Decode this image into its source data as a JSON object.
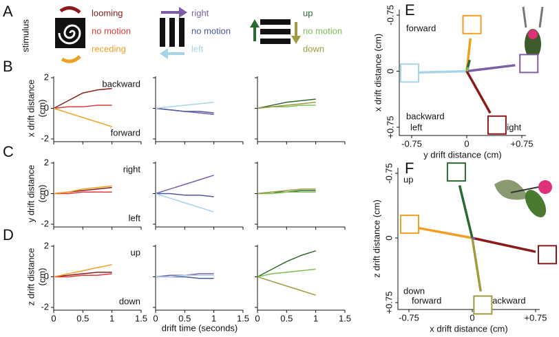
{
  "panel_labels": [
    "A",
    "B",
    "C",
    "D",
    "E",
    "F"
  ],
  "stimulus": {
    "label": "stimulus",
    "groups": [
      {
        "items": [
          "looming",
          "no motion",
          "receding"
        ],
        "colors": [
          "#8b1a1a",
          "#e03a3a",
          "#f0a020"
        ]
      },
      {
        "items": [
          "right",
          "no motion",
          "left"
        ],
        "colors": [
          "#7b5ea7",
          "#4a5aa0",
          "#a8d4e8"
        ]
      },
      {
        "items": [
          "up",
          "no motion",
          "down"
        ],
        "colors": [
          "#2a6a30",
          "#7cc050",
          "#a09a40"
        ]
      }
    ]
  },
  "drift": {
    "xlabel": "drift time (seconds)",
    "xlim": [
      0,
      1.5
    ],
    "xticks": [
      0,
      0.5,
      1,
      1.5
    ],
    "ylim": [
      -2,
      2
    ],
    "yticks": [
      -2,
      0,
      2
    ],
    "rows": [
      {
        "ylabel": "x drift distance",
        "unit": "(cm)",
        "top": "backward",
        "bottom": "forward",
        "charts": [
          {
            "type": "line",
            "series": [
              {
                "color": "#8b1a1a",
                "x": [
                  0,
                  0.25,
                  0.5,
                  0.75,
                  1
                ],
                "values": [
                  0,
                  0.5,
                  1.0,
                  1.2,
                  1.3
                ]
              },
              {
                "color": "#e03a3a",
                "x": [
                  0,
                  0.25,
                  0.5,
                  0.75,
                  1
                ],
                "values": [
                  0,
                  0.1,
                  0.1,
                  0.2,
                  0.2
                ]
              },
              {
                "color": "#f0a020",
                "x": [
                  0,
                  0.25,
                  0.5,
                  0.75,
                  1
                ],
                "values": [
                  0,
                  -0.3,
                  -0.6,
                  -0.9,
                  -1.2
                ]
              }
            ]
          },
          {
            "type": "line",
            "series": [
              {
                "color": "#7b5ea7",
                "x": [
                  0,
                  0.25,
                  0.5,
                  0.75,
                  1
                ],
                "values": [
                  0,
                  -0.1,
                  -0.2,
                  -0.3,
                  -0.4
                ]
              },
              {
                "color": "#4a5aa0",
                "x": [
                  0,
                  0.25,
                  0.5,
                  0.75,
                  1
                ],
                "values": [
                  0,
                  -0.1,
                  -0.2,
                  -0.2,
                  -0.3
                ]
              },
              {
                "color": "#a8d4e8",
                "x": [
                  0,
                  0.25,
                  0.5,
                  0.75,
                  1
                ],
                "values": [
                  0,
                  0.1,
                  0.2,
                  0.3,
                  0.4
                ]
              }
            ]
          },
          {
            "type": "line",
            "series": [
              {
                "color": "#2a6a30",
                "x": [
                  0,
                  0.25,
                  0.5,
                  0.75,
                  1
                ],
                "values": [
                  0,
                  0.2,
                  0.4,
                  0.5,
                  0.6
                ]
              },
              {
                "color": "#7cc050",
                "x": [
                  0,
                  0.25,
                  0.5,
                  0.75,
                  1
                ],
                "values": [
                  0,
                  0.1,
                  0.1,
                  0.2,
                  0.2
                ]
              },
              {
                "color": "#a09a40",
                "x": [
                  0,
                  0.25,
                  0.5,
                  0.75,
                  1
                ],
                "values": [
                  0,
                  0.1,
                  0.2,
                  0.3,
                  0.4
                ]
              }
            ]
          }
        ]
      },
      {
        "ylabel": "y drift distance",
        "unit": "(cm)",
        "top": "right",
        "bottom": "left",
        "charts": [
          {
            "type": "line",
            "series": [
              {
                "color": "#8b1a1a",
                "x": [
                  0,
                  0.25,
                  0.5,
                  0.75,
                  1
                ],
                "values": [
                  0,
                  0.1,
                  0.2,
                  0.3,
                  0.4
                ]
              },
              {
                "color": "#e03a3a",
                "x": [
                  0,
                  0.25,
                  0.5,
                  0.75,
                  1
                ],
                "values": [
                  0,
                  0,
                  0.1,
                  0.1,
                  0.1
                ]
              },
              {
                "color": "#f0a020",
                "x": [
                  0,
                  0.25,
                  0.5,
                  0.75,
                  1
                ],
                "values": [
                  0,
                  0.1,
                  0.3,
                  0.4,
                  0.5
                ]
              }
            ]
          },
          {
            "type": "line",
            "series": [
              {
                "color": "#7b5ea7",
                "x": [
                  0,
                  0.25,
                  0.5,
                  0.75,
                  1
                ],
                "values": [
                  0,
                  0.3,
                  0.6,
                  0.9,
                  1.2
                ]
              },
              {
                "color": "#4a5aa0",
                "x": [
                  0,
                  0.25,
                  0.5,
                  0.75,
                  1
                ],
                "values": [
                  0,
                  0,
                  -0.1,
                  -0.1,
                  -0.2
                ]
              },
              {
                "color": "#a8d4e8",
                "x": [
                  0,
                  0.25,
                  0.5,
                  0.75,
                  1
                ],
                "values": [
                  0,
                  -0.3,
                  -0.6,
                  -0.9,
                  -1.2
                ]
              }
            ]
          },
          {
            "type": "line",
            "series": [
              {
                "color": "#2a6a30",
                "x": [
                  0,
                  0.25,
                  0.5,
                  0.75,
                  1
                ],
                "values": [
                  0,
                  0.1,
                  0.1,
                  0.2,
                  0.2
                ]
              },
              {
                "color": "#7cc050",
                "x": [
                  0,
                  0.25,
                  0.5,
                  0.75,
                  1
                ],
                "values": [
                  0,
                  0,
                  0.1,
                  0.1,
                  0.1
                ]
              },
              {
                "color": "#a09a40",
                "x": [
                  0,
                  0.25,
                  0.5,
                  0.75,
                  1
                ],
                "values": [
                  0,
                  0.1,
                  0.2,
                  0.3,
                  0.3
                ]
              }
            ]
          }
        ]
      },
      {
        "ylabel": "z drift distance",
        "unit": "(cm)",
        "top": "up",
        "bottom": "down",
        "charts": [
          {
            "type": "line",
            "series": [
              {
                "color": "#8b1a1a",
                "x": [
                  0,
                  0.25,
                  0.5,
                  0.75,
                  1
                ],
                "values": [
                  0,
                  0.1,
                  0.2,
                  0.3,
                  0.3
                ]
              },
              {
                "color": "#e03a3a",
                "x": [
                  0,
                  0.25,
                  0.5,
                  0.75,
                  1
                ],
                "values": [
                  0,
                  0,
                  0.1,
                  0.1,
                  0.2
                ]
              },
              {
                "color": "#f0a020",
                "x": [
                  0,
                  0.25,
                  0.5,
                  0.75,
                  1
                ],
                "values": [
                  0,
                  0.2,
                  0.4,
                  0.6,
                  0.8
                ]
              }
            ]
          },
          {
            "type": "line",
            "series": [
              {
                "color": "#7b5ea7",
                "x": [
                  0,
                  0.25,
                  0.5,
                  0.75,
                  1
                ],
                "values": [
                  0,
                  0.1,
                  0.1,
                  0.2,
                  0.2
                ]
              },
              {
                "color": "#4a5aa0",
                "x": [
                  0,
                  0.25,
                  0.5,
                  0.75,
                  1
                ],
                "values": [
                  0,
                  0,
                  0,
                  -0.1,
                  -0.1
                ]
              },
              {
                "color": "#a8d4e8",
                "x": [
                  0,
                  0.25,
                  0.5,
                  0.75,
                  1
                ],
                "values": [
                  0,
                  0,
                  0.1,
                  0.1,
                  0.1
                ]
              }
            ]
          },
          {
            "type": "line",
            "series": [
              {
                "color": "#2a6a30",
                "x": [
                  0,
                  0.25,
                  0.5,
                  0.75,
                  1
                ],
                "values": [
                  0,
                  0.5,
                  1.0,
                  1.4,
                  1.7
                ]
              },
              {
                "color": "#7cc050",
                "x": [
                  0,
                  0.25,
                  0.5,
                  0.75,
                  1
                ],
                "values": [
                  0,
                  0.2,
                  0.3,
                  0.4,
                  0.5
                ]
              },
              {
                "color": "#a09a40",
                "x": [
                  0,
                  0.25,
                  0.5,
                  0.75,
                  1
                ],
                "values": [
                  0,
                  -0.3,
                  -0.6,
                  -0.9,
                  -1.2
                ]
              }
            ]
          }
        ]
      }
    ]
  },
  "planes": [
    {
      "type": "line",
      "ylabel": "x drift distance (cm)",
      "xlabel": "y drift distance (cm)",
      "xlim": [
        -0.75,
        0.75
      ],
      "xticks": [
        -0.75,
        0,
        {
          "value": 0.75,
          "label": "+0.75"
        }
      ],
      "ylim": [
        -0.75,
        0.75
      ],
      "yticks": [
        -0.75,
        0,
        {
          "value": 0.75,
          "label": "+0.75"
        }
      ],
      "corners": [
        "forward",
        "backward",
        "left",
        "right"
      ],
      "segments": [
        {
          "color": "#7b5ea7",
          "x": [
            0,
            0.66
          ],
          "values": [
            0,
            -0.08
          ]
        },
        {
          "color": "#a8d4e8",
          "x": [
            0,
            -0.73
          ],
          "values": [
            0,
            0.02
          ]
        },
        {
          "color": "#f0a020",
          "x": [
            0,
            0.05
          ],
          "values": [
            0,
            -0.44
          ]
        },
        {
          "color": "#8b1a1a",
          "x": [
            0,
            0.32
          ],
          "values": [
            0,
            0.56
          ]
        },
        {
          "color": "#2a6a30",
          "x": [
            0,
            0.04
          ],
          "values": [
            0,
            -0.15
          ]
        },
        {
          "color": "#7cc050",
          "x": [
            0,
            0.02
          ],
          "values": [
            0,
            -0.05
          ]
        }
      ]
    },
    {
      "type": "line",
      "ylabel": "z drift distance (cm)",
      "xlabel": "x drift distance (cm)",
      "xlim": [
        -0.75,
        0.75
      ],
      "xticks": [
        -0.75,
        0,
        {
          "value": 0.75,
          "label": "+0.75"
        }
      ],
      "ylim": [
        -0.75,
        0.75
      ],
      "yticks": [
        -0.75,
        0,
        {
          "value": 0.75,
          "label": "+0.75"
        }
      ],
      "corners": [
        "up",
        "down",
        "forward",
        "backward"
      ],
      "segments": [
        {
          "color": "#f0a020",
          "x": [
            0,
            -0.72
          ],
          "values": [
            0,
            -0.13
          ]
        },
        {
          "color": "#8b1a1a",
          "x": [
            0,
            0.75
          ],
          "values": [
            0,
            0.16
          ]
        },
        {
          "color": "#2a6a30",
          "x": [
            0,
            -0.15
          ],
          "values": [
            0,
            -0.61
          ]
        },
        {
          "color": "#a09a40",
          "x": [
            0,
            0.1
          ],
          "values": [
            0,
            0.62
          ]
        },
        {
          "color": "#7b5ea7",
          "x": [
            0,
            0.03
          ],
          "values": [
            0,
            0.01
          ]
        }
      ]
    }
  ]
}
